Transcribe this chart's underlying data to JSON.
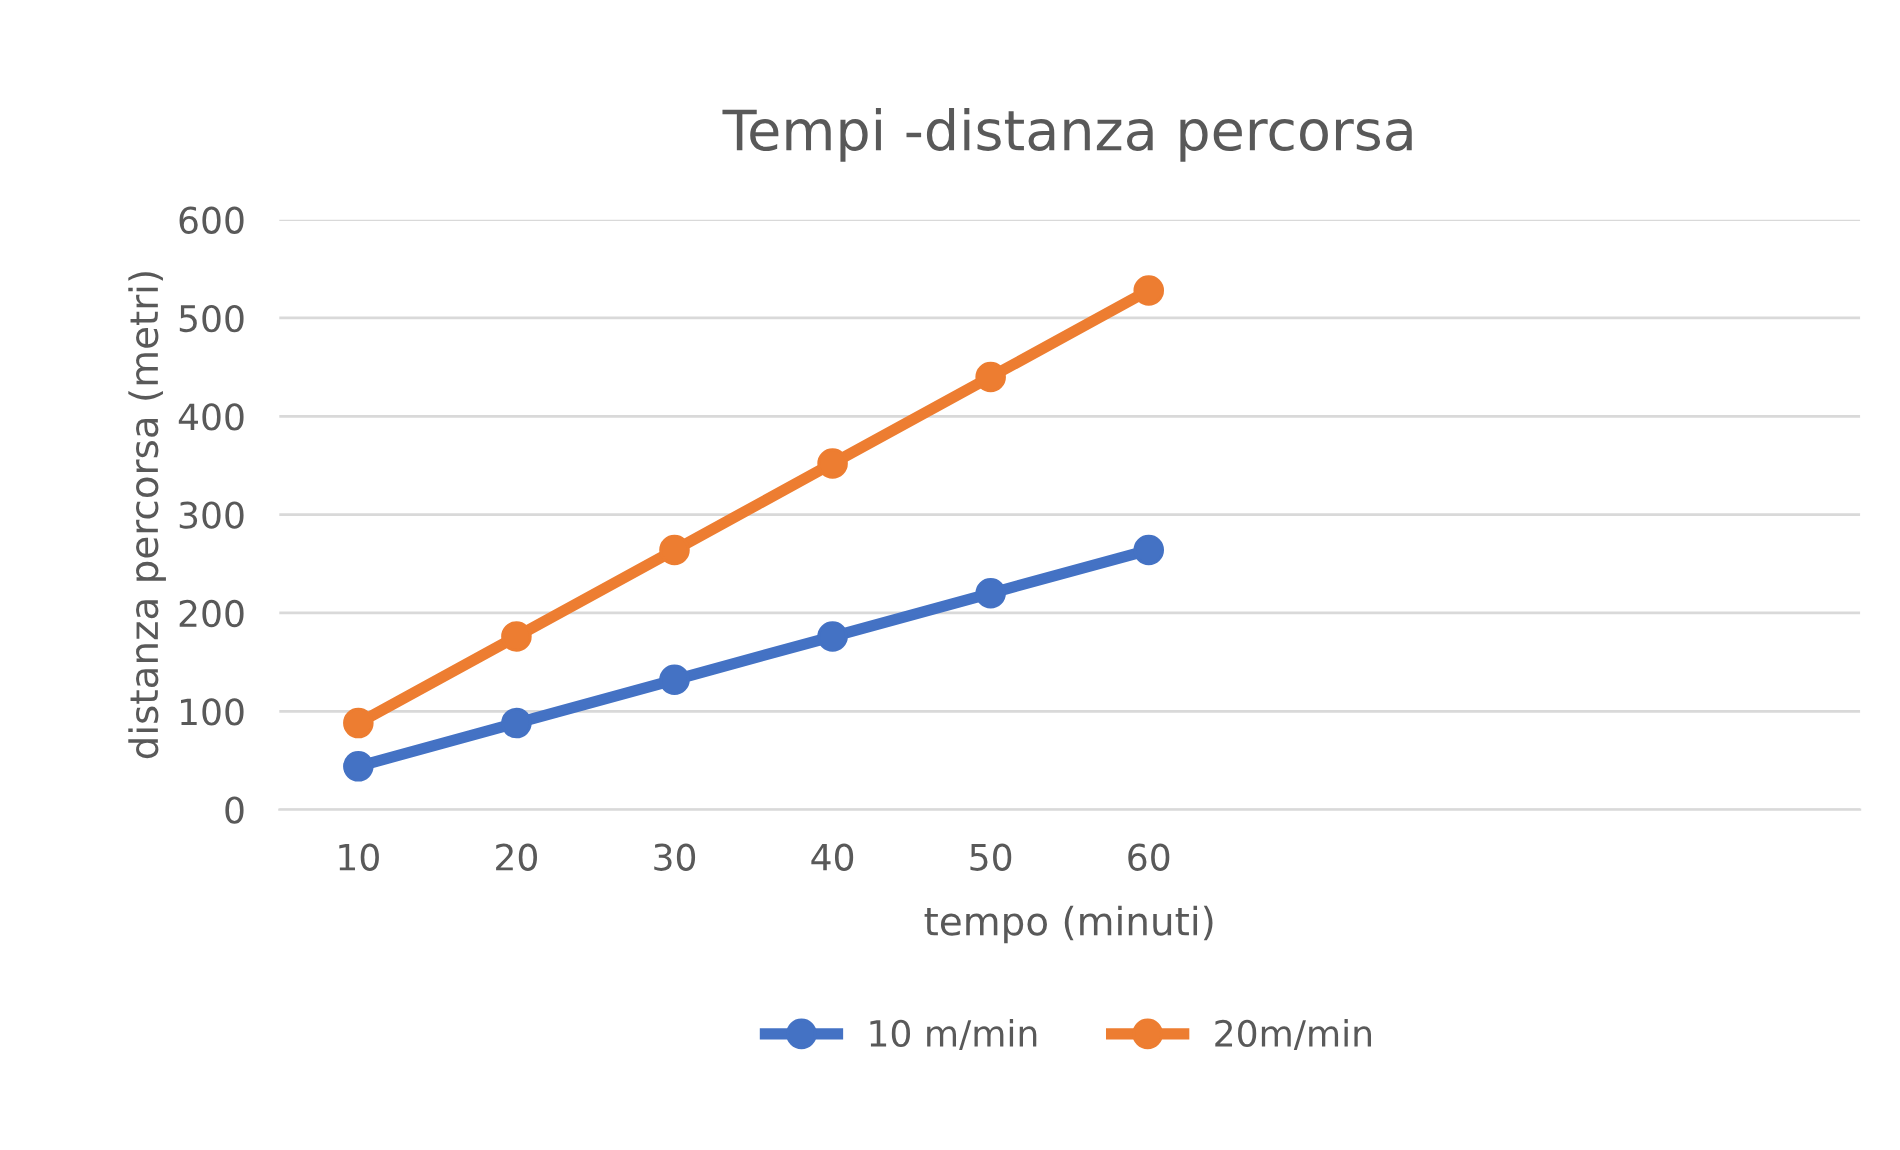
{
  "chart_data": {
    "type": "line",
    "title": "Tempi -distanza percorsa",
    "xlabel": "tempo (minuti)",
    "ylabel": "distanza percorsa (metri)",
    "categories": [
      "10",
      "20",
      "30",
      "40",
      "50",
      "60",
      null,
      null,
      null,
      null
    ],
    "series": [
      {
        "name": "10 m/min",
        "color": "#4472c4",
        "values": [
          44,
          88,
          132,
          176,
          220,
          264,
          null,
          null,
          null,
          null
        ]
      },
      {
        "name": "20m/min",
        "color": "#ed7d31",
        "values": [
          88,
          176,
          264,
          352,
          440,
          528,
          null,
          null,
          null,
          null
        ]
      }
    ],
    "ylim": [
      0,
      600
    ],
    "yticks": [
      0,
      100,
      200,
      300,
      400,
      500,
      600
    ],
    "grid": "y",
    "legend": "bottom",
    "marker": "circle",
    "line_style": "solid"
  }
}
